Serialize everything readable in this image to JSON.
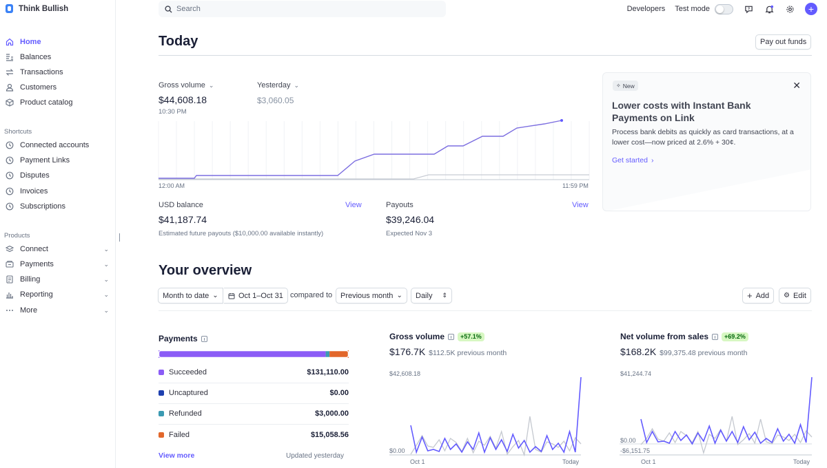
{
  "brand": {
    "name": "Think Bullish"
  },
  "nav": {
    "main": [
      {
        "label": "Home",
        "icon": "home-icon",
        "active": true
      },
      {
        "label": "Balances",
        "icon": "balances-icon"
      },
      {
        "label": "Transactions",
        "icon": "transactions-icon"
      },
      {
        "label": "Customers",
        "icon": "customers-icon"
      },
      {
        "label": "Product catalog",
        "icon": "product-catalog-icon"
      }
    ],
    "shortcuts_label": "Shortcuts",
    "shortcuts": [
      {
        "label": "Connected accounts"
      },
      {
        "label": "Payment Links"
      },
      {
        "label": "Disputes"
      },
      {
        "label": "Invoices"
      },
      {
        "label": "Subscriptions"
      }
    ],
    "products_label": "Products",
    "products": [
      {
        "label": "Connect",
        "icon": "connect-icon"
      },
      {
        "label": "Payments",
        "icon": "payments-icon"
      },
      {
        "label": "Billing",
        "icon": "billing-icon"
      },
      {
        "label": "Reporting",
        "icon": "reporting-icon"
      },
      {
        "label": "More",
        "icon": "more-icon"
      }
    ]
  },
  "topbar": {
    "search_placeholder": "Search",
    "developers": "Developers",
    "test_mode": "Test mode",
    "accent": "#635bff"
  },
  "today": {
    "title": "Today",
    "payout_button": "Pay out funds",
    "gross_volume": {
      "label": "Gross volume",
      "value": "$44,608.18",
      "time": "10:30 PM"
    },
    "yesterday": {
      "label": "Yesterday",
      "value": "$3,060.05"
    },
    "chart": {
      "start": "12:00 AM",
      "end": "11:59 PM"
    },
    "usd_balance": {
      "label": "USD balance",
      "link": "View",
      "value": "$41,187.74",
      "sub": "Estimated future payouts ($10,000.00 available instantly)"
    },
    "payouts": {
      "label": "Payouts",
      "link": "View",
      "value": "$39,246.04",
      "sub": "Expected Nov 3"
    }
  },
  "promo": {
    "badge": "New",
    "title": "Lower costs with Instant Bank Payments on Link",
    "body": "Process bank debits as quickly as card transactions, at a lower cost—now priced at 2.6% + 30¢.",
    "cta": "Get started"
  },
  "overview": {
    "title": "Your overview",
    "range": "Month to date",
    "dates": "Oct 1–Oct 31",
    "compared_to": "compared to",
    "compare": "Previous month",
    "interval": "Daily",
    "add": "Add",
    "edit": "Edit"
  },
  "payments": {
    "title": "Payments",
    "rows": [
      {
        "label": "Succeeded",
        "amount": "$131,110.00",
        "color": "#8b5cf6"
      },
      {
        "label": "Uncaptured",
        "amount": "$0.00",
        "color": "#1e40af"
      },
      {
        "label": "Refunded",
        "amount": "$3,000.00",
        "color": "#3b9ab2"
      },
      {
        "label": "Failed",
        "amount": "$15,058.56",
        "color": "#e2672b"
      }
    ],
    "view_more": "View more",
    "updated": "Updated yesterday"
  },
  "gross_card": {
    "title": "Gross volume",
    "change": "+57.1%",
    "value": "$176.7K",
    "prev": "$112.5K previous month",
    "ymax": "$42,608.18",
    "ymin": "$0.00",
    "x_start": "Oct 1",
    "x_end": "Today"
  },
  "net_card": {
    "title": "Net volume from sales",
    "change": "+69.2%",
    "value": "$168.2K",
    "prev": "$99,375.48 previous month",
    "ymax": "$41,244.74",
    "ymid": "$0.00",
    "ymin": "-$6,151.75",
    "x_start": "Oct 1",
    "x_end": "Today"
  }
}
